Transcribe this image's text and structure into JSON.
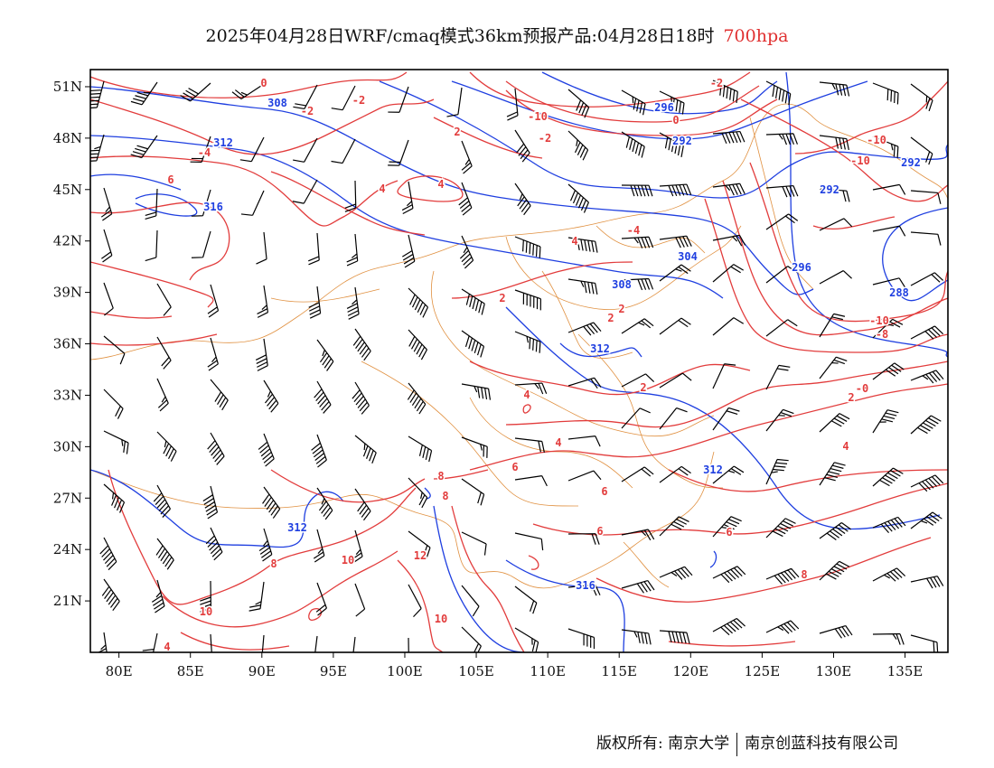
{
  "title": {
    "main": "2025年04月28日WRF/cmaq模式36km预报产品:04月28日18时",
    "level": "700hpa",
    "level_color": "#e03030"
  },
  "map": {
    "lon_range": [
      78,
      138
    ],
    "lat_range": [
      18,
      52
    ],
    "lon_ticks": [
      "80E",
      "85E",
      "90E",
      "95E",
      "100E",
      "105E",
      "110E",
      "115E",
      "120E",
      "125E",
      "130E",
      "135E"
    ],
    "lat_ticks": [
      "51N",
      "48N",
      "45N",
      "42N",
      "39N",
      "36N",
      "33N",
      "30N",
      "27N",
      "24N",
      "21N"
    ],
    "height_color": "#1f3fe0",
    "temp_color": "#e23c3c",
    "border_color": "#e09040",
    "barb_color": "#000000",
    "height_labels": [
      "308",
      "312",
      "316",
      "296",
      "292",
      "292",
      "292",
      "296",
      "288",
      "304",
      "308",
      "312",
      "312",
      "312",
      "316"
    ],
    "temp_labels": [
      "0",
      "-2",
      "-2",
      "2",
      "-4",
      "-10",
      "-2",
      "0",
      "-2",
      "-10",
      "-10",
      "4",
      "6",
      "4",
      "4",
      "2",
      "-4",
      "2",
      "2",
      "2",
      "-10",
      "-8",
      "2",
      "-0",
      "4",
      "4",
      "4",
      "6",
      "8",
      "8",
      "6",
      "6",
      "6",
      "8",
      "8",
      "10",
      "12",
      "10",
      "10",
      "4"
    ]
  },
  "footer": {
    "left": "版权所有: 南京大学",
    "right": "南京创蓝科技有限公司"
  }
}
